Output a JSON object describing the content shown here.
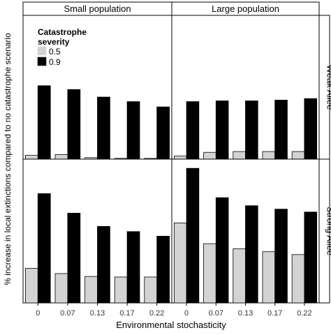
{
  "chart_data": {
    "type": "bar",
    "ylabel": "% increase in local extinctions compared to no catastrophe scenario",
    "xlabel": "Environmental stochasticity",
    "columns": [
      "Small population",
      "Large population"
    ],
    "rows": [
      "Weak Allee",
      "Strong Allee"
    ],
    "categories": [
      "0",
      "0.07",
      "0.13",
      "0.17",
      "0.22"
    ],
    "legend": {
      "title": "Catastrophe severity",
      "position": "top-left",
      "entries": [
        {
          "label": "0.5",
          "color": "#d3d3d3"
        },
        {
          "label": "0.9",
          "color": "#000000"
        }
      ]
    },
    "panels": [
      {
        "column": "Small population",
        "row": "Weak Allee",
        "series": [
          {
            "name": "0.5",
            "values": [
              0.5,
              0.6,
              0.2,
              0.1,
              0.1
            ]
          },
          {
            "name": "0.9",
            "values": [
              9.7,
              9.2,
              8.2,
              7.6,
              6.9
            ]
          }
        ]
      },
      {
        "column": "Large population",
        "row": "Weak Allee",
        "series": [
          {
            "name": "0.5",
            "values": [
              0.4,
              0.9,
              1.0,
              1.0,
              1.0
            ]
          },
          {
            "name": "0.9",
            "values": [
              7.6,
              7.7,
              7.7,
              7.8,
              8.0
            ]
          }
        ]
      },
      {
        "column": "Small population",
        "row": "Strong Allee",
        "series": [
          {
            "name": "0.5",
            "values": [
              6.0,
              5.1,
              4.6,
              4.5,
              4.5
            ]
          },
          {
            "name": "0.9",
            "values": [
              19.0,
              15.6,
              13.3,
              12.4,
              11.6
            ]
          }
        ]
      },
      {
        "column": "Large population",
        "row": "Strong Allee",
        "series": [
          {
            "name": "0.5",
            "values": [
              13.9,
              10.3,
              9.4,
              8.9,
              8.4
            ]
          },
          {
            "name": "0.9",
            "values": [
              23.4,
              18.3,
              16.9,
              16.3,
              15.8
            ]
          }
        ]
      }
    ],
    "ylim_weak": [
      0,
      19
    ],
    "ylim_strong": [
      0,
      25
    ]
  }
}
